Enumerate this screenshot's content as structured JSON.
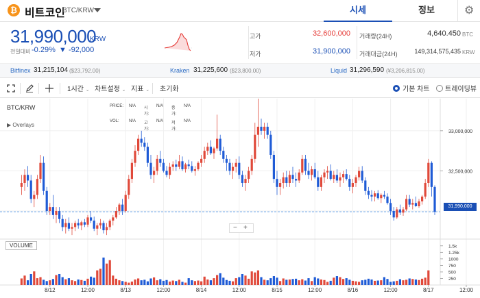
{
  "header": {
    "coin_logo": "₿",
    "coin_name": "비트코인",
    "pair": "BTC/KRW",
    "tabs": [
      {
        "label": "시세"
      },
      {
        "label": "정보"
      }
    ],
    "settings_icon": "gear-icon"
  },
  "price": {
    "value": "31,990,000",
    "unit": "KRW",
    "change_label": "전일대비",
    "change_pct": "-0.29%",
    "change_abs": "▼ -92,000",
    "spark_color": "#e53935"
  },
  "stats": {
    "high_label": "고가",
    "high_value": "32,600,000",
    "low_label": "저가",
    "low_value": "31,900,000",
    "volume_label": "거래량(24H)",
    "volume_value": "4,640.450",
    "volume_unit": "BTC",
    "amount_label": "거래대금(24H)",
    "amount_value": "149,314,575,435",
    "amount_unit": "KRW"
  },
  "exchanges": [
    {
      "name": "Bitfinex",
      "value": "31,215,104",
      "sub": "($23,792.00)"
    },
    {
      "name": "Kraken",
      "value": "31,225,600",
      "sub": "($23,800.00)"
    },
    {
      "name": "Liquid",
      "value": "31,296,590",
      "sub": "(¥3,206,815.00)"
    }
  ],
  "toolbar": {
    "interval": "1시간",
    "chart_settings": "차트설정",
    "indicators": "지표",
    "reset": "초기화",
    "basic_chart": "기본 차트",
    "trading_view": "트레이딩뷰"
  },
  "chart": {
    "pair_label": "BTC/KRW",
    "overlays_label": "▶ Overlays",
    "ohlc_rows": [
      [
        "PRICE:",
        "N/A",
        "시가:",
        "N/A",
        "종가:",
        "N/A"
      ],
      [
        "VOL:",
        "N/A",
        "고가:",
        "N/A",
        "저가:",
        "N/A"
      ]
    ],
    "zoom_out": "−",
    "zoom_in": "+",
    "volume_label": "VOLUME",
    "last_price_tag": "31,990,000",
    "colors": {
      "up": "#e0493a",
      "down": "#1f5bd6",
      "grid": "#efefef",
      "dash": "#6ea6ee"
    }
  },
  "chart_data": [
    {
      "type": "candlestick",
      "title": "BTC/KRW",
      "interval": "1 hour",
      "y_ticks": [
        "33,000,000",
        "32,500,000"
      ],
      "y_range": [
        31650000,
        33400000
      ],
      "last_price": 31990000,
      "x_ticks": [
        "8/12",
        "12:00",
        "8/13",
        "12:00",
        "8/14",
        "12:00",
        "8/15",
        "12:00",
        "8/16",
        "12:00",
        "8/17",
        "12:00"
      ],
      "x_tick_hours": [
        0,
        12,
        24,
        36,
        48,
        60,
        72,
        84,
        96,
        108,
        120,
        132
      ],
      "start_hour_offset": -9,
      "candles": [
        [
          32300000,
          32450000,
          32200000,
          32350000
        ],
        [
          32350000,
          32520000,
          32250000,
          32450000
        ],
        [
          32450000,
          32560000,
          32300000,
          32380000
        ],
        [
          32380000,
          32450000,
          32100000,
          32150000
        ],
        [
          32150000,
          32250000,
          32050000,
          32200000
        ],
        [
          32200000,
          32450000,
          32150000,
          32400000
        ],
        [
          32400000,
          32700000,
          32350000,
          32600000
        ],
        [
          32600000,
          32680000,
          32200000,
          32250000
        ],
        [
          32250000,
          32300000,
          31950000,
          32000000
        ],
        [
          32000000,
          32100000,
          31950000,
          32050000
        ],
        [
          32050000,
          32200000,
          31900000,
          31950000
        ],
        [
          31950000,
          32050000,
          31850000,
          32000000
        ],
        [
          32000000,
          32050000,
          31850000,
          31900000
        ],
        [
          31900000,
          31950000,
          31750000,
          31800000
        ],
        [
          31800000,
          31900000,
          31720000,
          31850000
        ],
        [
          31850000,
          31920000,
          31750000,
          31780000
        ],
        [
          31780000,
          31850000,
          31700000,
          31800000
        ],
        [
          31800000,
          31880000,
          31750000,
          31850000
        ],
        [
          31850000,
          31900000,
          31780000,
          31820000
        ],
        [
          31820000,
          31880000,
          31760000,
          31860000
        ],
        [
          31860000,
          31900000,
          31800000,
          31830000
        ],
        [
          31830000,
          31950000,
          31800000,
          31920000
        ],
        [
          31920000,
          32000000,
          31850000,
          31880000
        ],
        [
          31880000,
          31930000,
          31750000,
          31780000
        ],
        [
          31780000,
          31850000,
          31700000,
          31820000
        ],
        [
          31820000,
          31900000,
          31780000,
          31850000
        ],
        [
          31850000,
          31880000,
          31720000,
          31760000
        ],
        [
          31760000,
          31850000,
          31700000,
          31800000
        ],
        [
          31800000,
          31900000,
          31760000,
          31880000
        ],
        [
          31880000,
          31950000,
          31820000,
          31920000
        ],
        [
          31920000,
          32050000,
          31900000,
          32000000
        ],
        [
          32000000,
          32100000,
          31950000,
          32080000
        ],
        [
          32080000,
          32150000,
          31950000,
          32000000
        ],
        [
          32000000,
          32250000,
          31980000,
          32200000
        ],
        [
          32200000,
          32450000,
          32150000,
          32400000
        ],
        [
          32400000,
          32650000,
          32350000,
          32600000
        ],
        [
          32600000,
          32820000,
          32550000,
          32750000
        ],
        [
          32750000,
          32950000,
          32700000,
          32900000
        ],
        [
          32900000,
          33000000,
          32800000,
          32850000
        ],
        [
          32850000,
          32920000,
          32750000,
          32800000
        ],
        [
          32800000,
          32850000,
          32550000,
          32600000
        ],
        [
          32600000,
          32700000,
          32400000,
          32450000
        ],
        [
          32450000,
          32550000,
          32350000,
          32500000
        ],
        [
          32500000,
          32700000,
          32450000,
          32650000
        ],
        [
          32650000,
          32750000,
          32550000,
          32600000
        ],
        [
          32600000,
          32650000,
          32480000,
          32500000
        ],
        [
          32500000,
          32560000,
          32420000,
          32450000
        ],
        [
          32450000,
          32600000,
          32400000,
          32550000
        ],
        [
          32550000,
          32620000,
          32500000,
          32580000
        ],
        [
          32580000,
          32640000,
          32500000,
          32550000
        ],
        [
          32550000,
          32700000,
          32520000,
          32620000
        ],
        [
          32620000,
          32680000,
          32500000,
          32520000
        ],
        [
          32520000,
          32600000,
          32480000,
          32580000
        ],
        [
          32580000,
          32640000,
          32520000,
          32560000
        ],
        [
          32560000,
          32620000,
          32480000,
          32500000
        ],
        [
          32500000,
          32560000,
          32440000,
          32520000
        ],
        [
          32520000,
          32620000,
          32500000,
          32600000
        ],
        [
          32600000,
          32700000,
          32550000,
          32650000
        ],
        [
          32650000,
          32800000,
          32600000,
          32750000
        ],
        [
          32750000,
          32850000,
          32700000,
          32800000
        ],
        [
          32800000,
          32880000,
          32700000,
          32720000
        ],
        [
          32720000,
          32800000,
          32650000,
          32780000
        ],
        [
          32780000,
          33200000,
          32750000,
          32900000
        ],
        [
          32900000,
          32950000,
          32700000,
          32750000
        ],
        [
          32750000,
          32800000,
          32600000,
          32650000
        ],
        [
          32650000,
          32700000,
          32500000,
          32600000
        ],
        [
          32600000,
          32650000,
          32450000,
          32500000
        ],
        [
          32500000,
          32600000,
          32400000,
          32550000
        ],
        [
          32550000,
          32650000,
          32480000,
          32600000
        ],
        [
          32600000,
          32680000,
          32400000,
          32450000
        ],
        [
          32450000,
          32500000,
          32300000,
          32350000
        ],
        [
          32350000,
          32450000,
          32250000,
          32400000
        ],
        [
          32400000,
          32550000,
          32350000,
          32500000
        ],
        [
          32500000,
          32700000,
          32450000,
          32650000
        ],
        [
          32650000,
          33100000,
          32600000,
          32950000
        ],
        [
          32950000,
          33400000,
          32800000,
          33050000
        ],
        [
          33050000,
          33150000,
          32950000,
          33000000
        ],
        [
          33000000,
          33100000,
          32900000,
          33050000
        ],
        [
          33050000,
          33100000,
          32900000,
          32950000
        ],
        [
          32950000,
          33000000,
          32650000,
          32700000
        ],
        [
          32700000,
          32750000,
          32350000,
          32400000
        ],
        [
          32400000,
          32500000,
          32200000,
          32300000
        ],
        [
          32300000,
          32400000,
          32200000,
          32350000
        ],
        [
          32350000,
          32480000,
          32280000,
          32420000
        ],
        [
          32420000,
          32500000,
          32300000,
          32350000
        ],
        [
          32350000,
          32500000,
          32300000,
          32450000
        ],
        [
          32450000,
          32550000,
          32350000,
          32400000
        ],
        [
          32400000,
          32480000,
          32300000,
          32380000
        ],
        [
          32380000,
          32520000,
          32350000,
          32480000
        ],
        [
          32480000,
          32700000,
          32450000,
          32650000
        ],
        [
          32650000,
          32700000,
          32450000,
          32500000
        ],
        [
          32500000,
          32600000,
          32400000,
          32450000
        ],
        [
          32450000,
          32560000,
          32380000,
          32520000
        ],
        [
          32520000,
          32600000,
          32400000,
          32420000
        ],
        [
          32420000,
          32500000,
          32250000,
          32300000
        ],
        [
          32300000,
          32450000,
          32250000,
          32420000
        ],
        [
          32420000,
          32520000,
          32350000,
          32480000
        ],
        [
          32480000,
          32560000,
          32400000,
          32500000
        ],
        [
          32500000,
          32580000,
          32380000,
          32400000
        ],
        [
          32400000,
          32500000,
          32350000,
          32450000
        ],
        [
          32450000,
          32520000,
          32350000,
          32380000
        ],
        [
          32380000,
          32480000,
          32300000,
          32420000
        ],
        [
          32420000,
          32500000,
          32350000,
          32460000
        ],
        [
          32460000,
          32520000,
          32380000,
          32400000
        ],
        [
          32400000,
          32450000,
          32250000,
          32300000
        ],
        [
          32300000,
          32400000,
          32220000,
          32350000
        ],
        [
          32350000,
          32450000,
          32300000,
          32420000
        ],
        [
          32420000,
          32550000,
          32380000,
          32500000
        ],
        [
          32500000,
          32560000,
          32350000,
          32380000
        ],
        [
          32380000,
          32420000,
          32200000,
          32250000
        ],
        [
          32250000,
          32300000,
          32150000,
          32200000
        ],
        [
          32200000,
          32260000,
          32120000,
          32180000
        ],
        [
          32180000,
          32250000,
          32120000,
          32220000
        ],
        [
          32220000,
          32260000,
          32140000,
          32160000
        ],
        [
          32160000,
          32220000,
          32100000,
          32200000
        ],
        [
          32200000,
          32250000,
          32150000,
          32180000
        ],
        [
          32180000,
          32220000,
          32080000,
          32100000
        ],
        [
          32100000,
          32150000,
          31950000,
          32000000
        ],
        [
          32000000,
          32050000,
          31880000,
          31920000
        ],
        [
          31920000,
          32050000,
          31900000,
          32020000
        ],
        [
          32020000,
          32080000,
          31950000,
          31980000
        ],
        [
          31980000,
          32050000,
          31940000,
          32020000
        ],
        [
          32020000,
          32200000,
          32000000,
          32150000
        ],
        [
          32150000,
          32200000,
          32050000,
          32080000
        ],
        [
          32080000,
          32150000,
          32020000,
          32100000
        ],
        [
          32100000,
          32180000,
          32050000,
          32060000
        ],
        [
          32060000,
          32150000,
          32040000,
          32120000
        ],
        [
          32120000,
          32200000,
          32080000,
          32180000
        ],
        [
          32180000,
          32400000,
          32150000,
          32350000
        ],
        [
          32350000,
          32650000,
          32300000,
          32600000
        ],
        [
          32600000,
          32620000,
          32180000,
          32300000
        ],
        [
          32300000,
          32320000,
          31950000,
          31990000
        ]
      ],
      "volume_ticks": [
        "1.5k",
        "1.25k",
        "1000",
        "750",
        "500",
        "250"
      ],
      "volume_max": 1600,
      "volumes": [
        250,
        360,
        180,
        420,
        520,
        260,
        300,
        200,
        150,
        180,
        230,
        380,
        420,
        300,
        220,
        260,
        180,
        150,
        210,
        190,
        160,
        240,
        320,
        280,
        560,
        620,
        1050,
        820,
        950,
        360,
        240,
        180,
        150,
        120,
        90,
        130,
        210,
        250,
        180,
        200,
        140,
        250,
        290,
        180,
        220,
        160,
        190,
        130,
        170,
        150,
        200,
        120,
        90,
        260,
        180,
        150,
        170,
        140,
        320,
        210,
        180,
        260,
        380,
        450,
        280,
        190,
        160,
        140,
        260,
        300,
        420,
        360,
        240,
        520,
        480,
        560,
        300,
        200,
        180,
        260,
        340,
        280,
        150,
        250,
        200,
        210,
        230,
        240,
        180,
        220,
        170,
        260,
        150,
        300,
        250,
        210,
        190,
        120,
        160,
        280,
        340,
        300,
        230,
        260,
        200,
        160,
        140,
        120,
        180,
        200,
        240,
        210,
        160,
        170,
        180,
        300,
        230,
        120,
        140,
        160,
        220,
        180,
        200,
        250,
        230,
        210,
        190,
        240,
        280,
        560
      ]
    }
  ]
}
